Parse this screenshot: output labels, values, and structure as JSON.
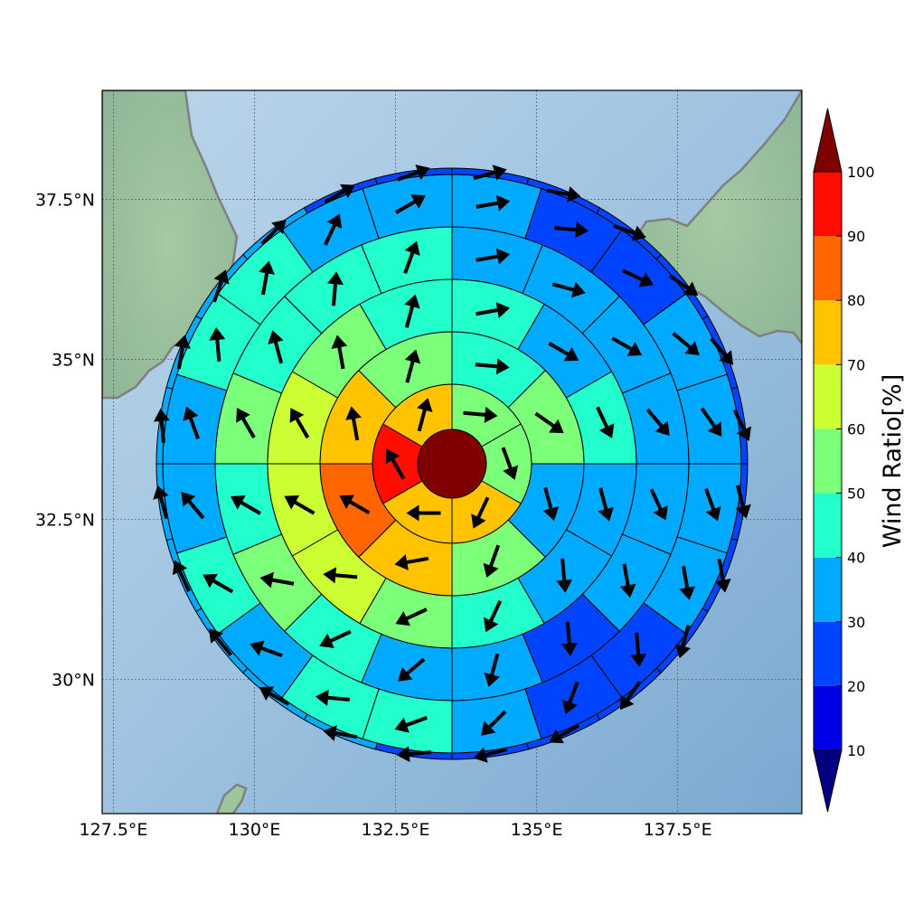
{
  "chart_data": {
    "type": "polar-sector-map",
    "title": "",
    "colorbar": {
      "label": "Wind Ratio[%]",
      "ticks": [
        "10",
        "20",
        "30",
        "40",
        "50",
        "60",
        "70",
        "80",
        "90",
        "100"
      ],
      "levels": [
        10,
        20,
        30,
        40,
        50,
        60,
        70,
        80,
        90,
        100
      ],
      "colors": [
        "#000080",
        "#0000e6",
        "#0044ff",
        "#00aaff",
        "#22ffcc",
        "#7cff79",
        "#ccff33",
        "#ffc300",
        "#ff6600",
        "#ff0d00",
        "#800000"
      ],
      "extend": "both"
    },
    "map": {
      "lon_range": [
        127.3,
        139.7
      ],
      "lat_range": [
        27.9,
        39.2
      ],
      "x_ticks": [
        127.5,
        130,
        132.5,
        135,
        137.5
      ],
      "x_tick_labels": [
        "127.5°E",
        "130°E",
        "132.5°E",
        "135°E",
        "137.5°E"
      ],
      "y_ticks": [
        30,
        32.5,
        35,
        37.5
      ],
      "y_tick_labels": [
        "30°N",
        "32.5°N",
        "35°N",
        "37.5°N"
      ],
      "ocean_color": "#9cc0de",
      "land_color": "#9bc4a8",
      "coast_color": "#808080",
      "center": {
        "lon": 133.4,
        "lat": 33.5
      }
    },
    "rings": [
      {
        "ring": 0,
        "sectors": 1,
        "values": [
          100
        ],
        "arrow_dirs": []
      },
      {
        "ring": 1,
        "sectors": 6,
        "values": [
          55,
          55,
          75,
          75,
          95,
          75
        ],
        "arrow_dirs": [
          95,
          160,
          205,
          270,
          330,
          15
        ]
      },
      {
        "ring": 2,
        "sectors": 8,
        "values": [
          45,
          55,
          35,
          55,
          75,
          85,
          75,
          55
        ],
        "arrow_dirs": [
          95,
          125,
          165,
          200,
          260,
          300,
          350,
          15
        ]
      },
      {
        "ring": 3,
        "sectors": 12,
        "values": [
          45,
          35,
          45,
          35,
          35,
          45,
          55,
          65,
          65,
          65,
          55,
          45
        ],
        "arrow_dirs": [
          80,
          120,
          155,
          165,
          175,
          205,
          245,
          275,
          300,
          330,
          350,
          15
        ]
      },
      {
        "ring": 4,
        "sectors": 16,
        "values": [
          35,
          35,
          35,
          35,
          35,
          35,
          25,
          35,
          35,
          45,
          55,
          45,
          55,
          45,
          45,
          45
        ],
        "arrow_dirs": [
          80,
          105,
          120,
          140,
          155,
          170,
          175,
          195,
          230,
          245,
          280,
          300,
          330,
          345,
          5,
          20
        ]
      },
      {
        "ring": 5,
        "sectors": 20,
        "values": [
          35,
          25,
          25,
          35,
          35,
          35,
          35,
          25,
          25,
          35,
          45,
          45,
          35,
          45,
          35,
          35,
          45,
          45,
          35,
          35
        ],
        "arrow_dirs": [
          80,
          95,
          115,
          130,
          145,
          160,
          170,
          175,
          200,
          225,
          250,
          275,
          290,
          300,
          320,
          340,
          355,
          10,
          25,
          60
        ]
      },
      {
        "ring": 6,
        "sectors": 24,
        "values": [
          25,
          25,
          25,
          25,
          25,
          25,
          25,
          25,
          25,
          25,
          25,
          25,
          25,
          35,
          35,
          35,
          35,
          35,
          35,
          35,
          35,
          35,
          25,
          25
        ],
        "arrow_dirs": [
          75,
          100,
          110,
          125,
          140,
          155,
          165,
          170,
          195,
          215,
          240,
          255,
          265,
          280,
          300,
          320,
          335,
          345,
          355,
          10,
          20,
          45,
          60,
          70
        ]
      }
    ]
  }
}
